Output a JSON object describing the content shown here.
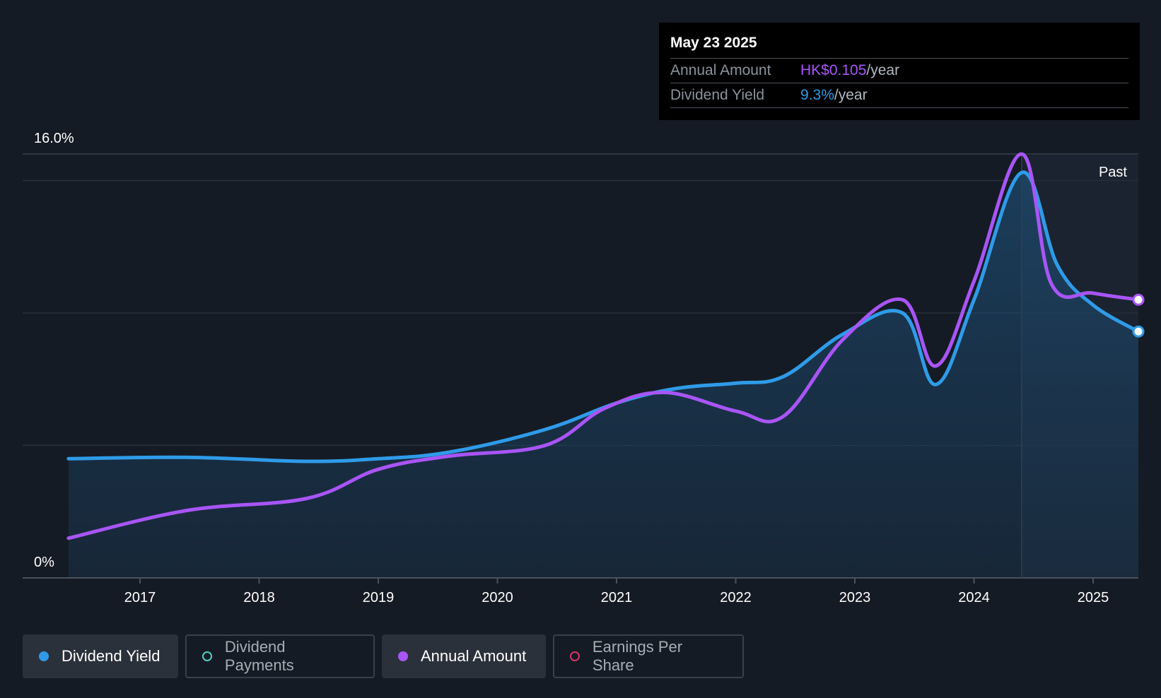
{
  "tooltip": {
    "date": "May 23 2025",
    "annual_label": "Annual Amount",
    "annual_value": "HK$0.105",
    "annual_unit": "/year",
    "yield_label": "Dividend Yield",
    "yield_value": "9.3%",
    "yield_unit": "/year"
  },
  "legend": {
    "dividend_yield": "Dividend Yield",
    "dividend_payments": "Dividend Payments",
    "annual_amount": "Annual Amount",
    "earnings_per_share": "Earnings Per Share"
  },
  "colors": {
    "dividend_yield": "#2f9be8",
    "annual_amount": "#a855f7",
    "dividend_payments": "#4fd1c5",
    "earnings_per_share": "#d6336c",
    "background": "#151b24"
  },
  "chart_data": {
    "type": "line",
    "y_axis": {
      "top_label": "16.0%",
      "bottom_label": "0%",
      "min": 0,
      "max": 16
    },
    "x_ticks": [
      "2017",
      "2018",
      "2019",
      "2020",
      "2021",
      "2022",
      "2023",
      "2024",
      "2025"
    ],
    "past_label": "Past",
    "series": [
      {
        "name": "Dividend Yield",
        "points": [
          [
            2016.4,
            4.5
          ],
          [
            2017.4,
            4.55
          ],
          [
            2018.4,
            4.4
          ],
          [
            2019.0,
            4.5
          ],
          [
            2019.6,
            4.75
          ],
          [
            2020.4,
            5.6
          ],
          [
            2021.0,
            6.6
          ],
          [
            2021.5,
            7.15
          ],
          [
            2022.0,
            7.35
          ],
          [
            2022.4,
            7.6
          ],
          [
            2022.9,
            9.2
          ],
          [
            2023.4,
            10.0
          ],
          [
            2023.68,
            7.3
          ],
          [
            2024.0,
            10.5
          ],
          [
            2024.4,
            15.3
          ],
          [
            2024.7,
            11.8
          ],
          [
            2025.0,
            10.3
          ],
          [
            2025.38,
            9.3
          ]
        ]
      },
      {
        "name": "Annual Amount",
        "points": [
          [
            2016.4,
            1.5
          ],
          [
            2017.4,
            2.55
          ],
          [
            2018.4,
            3.0
          ],
          [
            2019.0,
            4.1
          ],
          [
            2019.6,
            4.6
          ],
          [
            2020.4,
            5.0
          ],
          [
            2020.9,
            6.4
          ],
          [
            2021.4,
            7.0
          ],
          [
            2022.0,
            6.3
          ],
          [
            2022.4,
            6.1
          ],
          [
            2022.9,
            9.0
          ],
          [
            2023.4,
            10.5
          ],
          [
            2023.68,
            8.0
          ],
          [
            2024.0,
            11.2
          ],
          [
            2024.4,
            16.0
          ],
          [
            2024.65,
            11.1
          ],
          [
            2025.0,
            10.75
          ],
          [
            2025.38,
            10.5
          ]
        ]
      }
    ],
    "past_start": 2024.4,
    "grid": true,
    "legend_position": "bottom-left"
  }
}
